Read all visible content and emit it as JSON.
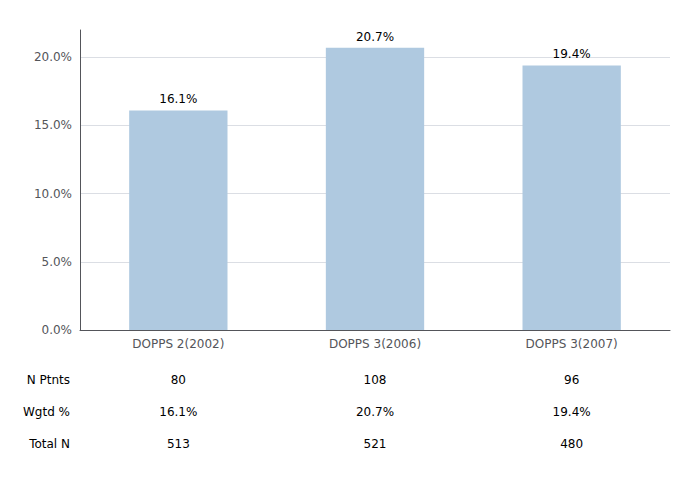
{
  "chart_data": {
    "type": "bar",
    "categories": [
      "DOPPS 2(2002)",
      "DOPPS 3(2006)",
      "DOPPS 3(2007)"
    ],
    "values": [
      16.1,
      20.7,
      19.4
    ],
    "value_labels": [
      "16.1%",
      "20.7%",
      "19.4%"
    ],
    "data_labels": true,
    "color": "#AFC9E0",
    "ylim": [
      0,
      22
    ],
    "yticks": [
      {
        "value": 0,
        "label": "0.0%"
      },
      {
        "value": 5.0,
        "label": "5.0%"
      },
      {
        "value": 10.0,
        "label": "10.0%"
      },
      {
        "value": 15.0,
        "label": "15.0%"
      },
      {
        "value": 20.0,
        "label": "20.0%"
      }
    ],
    "grid": true,
    "table": {
      "row_labels": [
        "N Ptnts",
        "Wgtd %",
        "Total N"
      ],
      "cells": [
        [
          "80",
          "108",
          "96"
        ],
        [
          "16.1%",
          "20.7%",
          "19.4%"
        ],
        [
          "513",
          "521",
          "480"
        ]
      ]
    }
  }
}
